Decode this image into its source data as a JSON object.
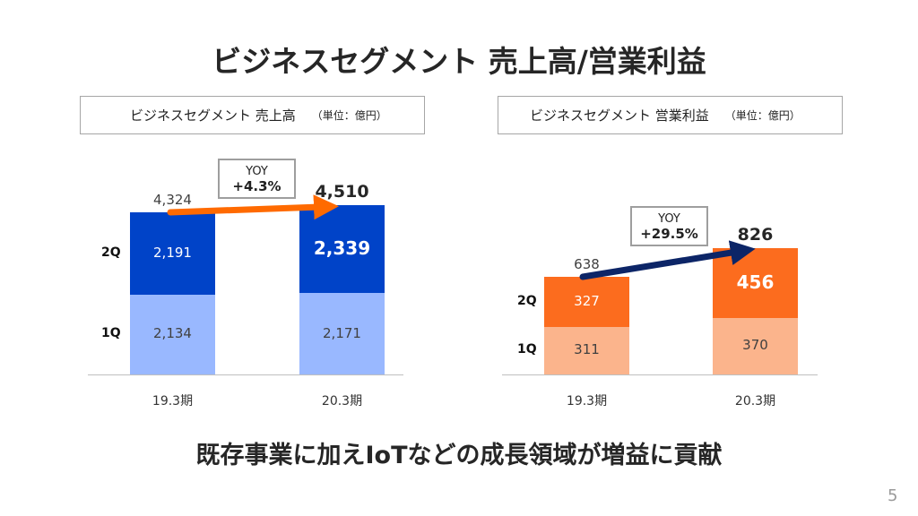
{
  "title": "ビジネスセグメント 売上高/営業利益",
  "footer": "既存事業に加えIoTなどの成長領域が増益に貢献",
  "page_number": "5",
  "chart_data": [
    {
      "type": "bar",
      "stacked": true,
      "title": "ビジネスセグメント 売上高",
      "unit": "（単位：億円）",
      "categories": [
        "19.3期",
        "20.3期"
      ],
      "series": [
        {
          "name": "1Q",
          "values": [
            2134,
            2171
          ],
          "labels": [
            "2,134",
            "2,171"
          ],
          "color": "#99b8ff"
        },
        {
          "name": "2Q",
          "values": [
            2191,
            2339
          ],
          "labels": [
            "2,191",
            "2,339"
          ],
          "color": "#0043c8"
        }
      ],
      "totals": [
        "4,324",
        "4,510"
      ],
      "yoy_label": "YOY",
      "yoy_value": "+4.3%",
      "arrow_color": "#ff6a00",
      "grid": false,
      "legend": "none"
    },
    {
      "type": "bar",
      "stacked": true,
      "title": "ビジネスセグメント 営業利益",
      "unit": "（単位：億円）",
      "categories": [
        "19.3期",
        "20.3期"
      ],
      "series": [
        {
          "name": "1Q",
          "values": [
            311,
            370
          ],
          "labels": [
            "311",
            "370"
          ],
          "color": "#fbb48c"
        },
        {
          "name": "2Q",
          "values": [
            327,
            456
          ],
          "labels": [
            "327",
            "456"
          ],
          "color": "#fc6c1e"
        }
      ],
      "totals": [
        "638",
        "826"
      ],
      "yoy_label": "YOY",
      "yoy_value": "+29.5%",
      "arrow_color": "#0c2567",
      "grid": false,
      "legend": "none"
    }
  ]
}
